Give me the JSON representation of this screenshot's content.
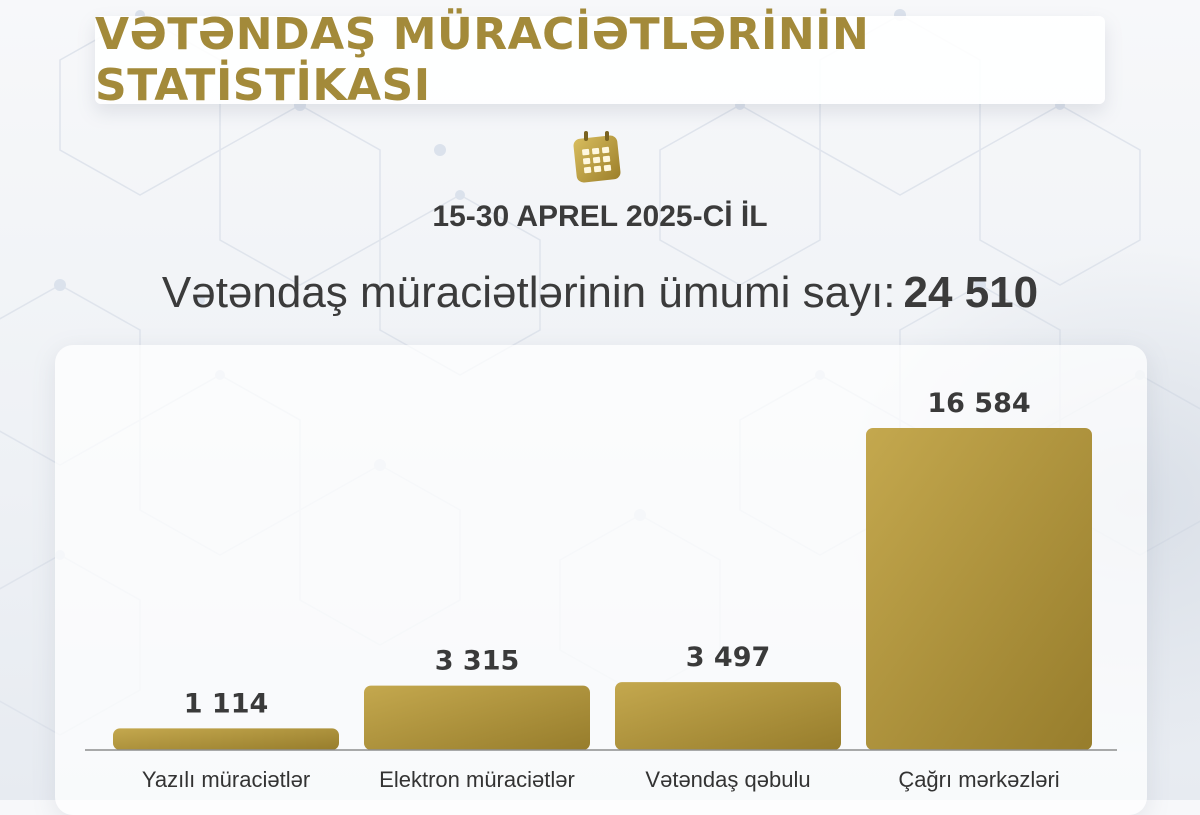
{
  "header": {
    "title": "VƏTƏNDAŞ MÜRACİƏTLƏRİNİN STATİSTİKASI",
    "date_range": "15-30 APREL 2025-Cİ İL",
    "total_label": "Vətəndaş müraciətlərinin ümumi sayı:",
    "total_value": "24 510",
    "icon": "calendar-icon"
  },
  "colors": {
    "title": "#a38a3a",
    "bar_light": "#c4a84e",
    "bar_dark": "#977d2c",
    "text": "#3a3a3a"
  },
  "chart_data": {
    "type": "bar",
    "categories": [
      "Yazılı müraciətlər",
      "Elektron müraciətlər",
      "Vətəndaş qəbulu",
      "Çağrı mərkəzləri"
    ],
    "values": [
      1114,
      3315,
      3497,
      16584
    ],
    "value_labels": [
      "1 114",
      "3 315",
      "3 497",
      "16 584"
    ],
    "title": "",
    "xlabel": "",
    "ylabel": "",
    "ylim": [
      0,
      16584
    ],
    "grid": false,
    "legend": "none"
  }
}
